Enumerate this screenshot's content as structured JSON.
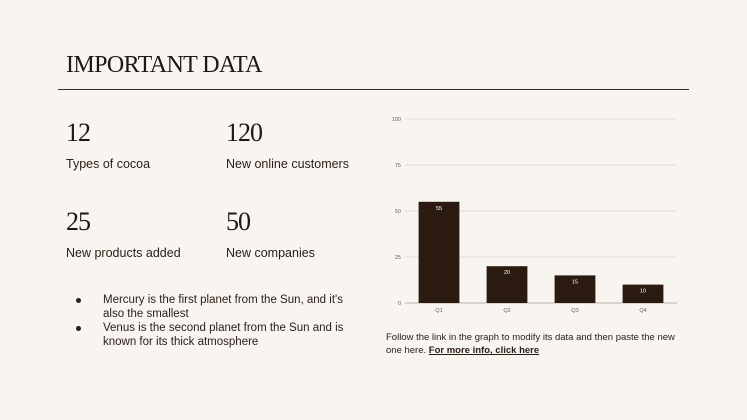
{
  "slide": {
    "title": "IMPORTANT DATA"
  },
  "stats": [
    {
      "value": "12",
      "label": "Types of cocoa"
    },
    {
      "value": "120",
      "label": "New online customers"
    },
    {
      "value": "25",
      "label": "New products added"
    },
    {
      "value": "50",
      "label": "New companies"
    }
  ],
  "bullets": [
    "Mercury is the first planet from the Sun, and it's also the smallest",
    "Venus is the second planet from the Sun and is known for its thick atmosphere"
  ],
  "caption": {
    "text": "Follow the link in the graph to modify its data and then paste the new one here. ",
    "link": "For more info, click here"
  },
  "colors": {
    "background": "#f8f4f0",
    "bar": "#2a1a10",
    "text": "#2a1d16"
  },
  "chart_data": {
    "type": "bar",
    "categories": [
      "Q1",
      "Q2",
      "Q3",
      "Q4"
    ],
    "values": [
      55,
      20,
      15,
      10
    ],
    "ylim": [
      0,
      100
    ],
    "yticks": [
      0,
      25,
      50,
      75,
      100
    ],
    "grid": true,
    "data_labels": true
  }
}
